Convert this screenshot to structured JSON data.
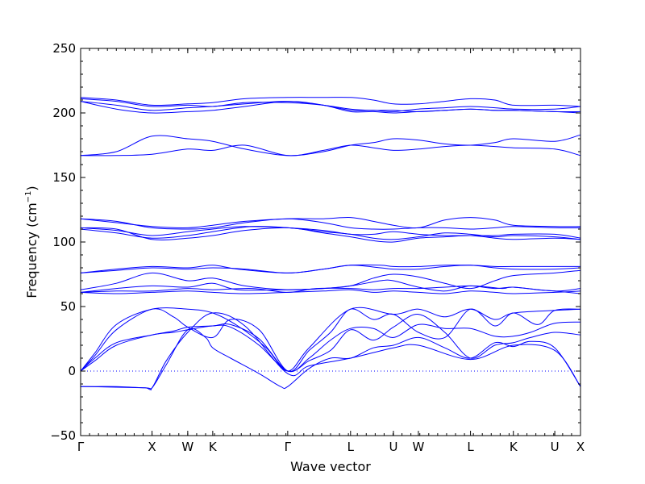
{
  "chart_data": {
    "type": "line",
    "title": "",
    "xlabel": "Wave vector",
    "ylabel": "Frequency (cm",
    "ylabel_sup": "−1",
    "ylabel_close": ")",
    "ylim": [
      -50,
      250
    ],
    "yticks": [
      "250",
      "200",
      "150",
      "100",
      "50",
      "0",
      "−50"
    ],
    "ytick_values": [
      250,
      200,
      150,
      100,
      50,
      0,
      -50
    ],
    "xlim": [
      0,
      7.0
    ],
    "xticks": [
      {
        "label": "Γ",
        "x": 0.0
      },
      {
        "label": "X",
        "x": 1.0
      },
      {
        "label": "W",
        "x": 1.5
      },
      {
        "label": "K",
        "x": 1.85
      },
      {
        "label": "Γ",
        "x": 2.9
      },
      {
        "label": "L",
        "x": 3.78
      },
      {
        "label": "U",
        "x": 4.38
      },
      {
        "label": "W",
        "x": 4.73
      },
      {
        "label": "L",
        "x": 5.46
      },
      {
        "label": "K",
        "x": 6.06
      },
      {
        "label": "U",
        "x": 6.64
      },
      {
        "label": "X",
        "x": 7.0
      }
    ],
    "series_color": "#0000ff",
    "zero_line_color": "#0000ff",
    "series": [
      {
        "x": [
          0.0,
          0.2,
          0.5,
          1.0,
          1.5,
          1.85,
          2.2,
          2.6,
          2.9,
          3.2,
          3.78,
          4.38,
          4.73,
          5.1,
          5.46,
          5.8,
          6.06,
          6.64,
          7.0
        ],
        "y": [
          0,
          14,
          36,
          48,
          48,
          45,
          35,
          18,
          0,
          18,
          48,
          44,
          48,
          42,
          48,
          40,
          45,
          47,
          48
        ]
      },
      {
        "x": [
          0.0,
          0.2,
          0.5,
          1.0,
          1.3,
          1.5,
          1.85,
          2.1,
          2.5,
          2.9,
          3.2,
          3.5,
          3.78,
          4.1,
          4.38,
          4.73,
          5.1,
          5.46,
          5.8,
          6.06,
          6.4,
          6.64,
          7.0
        ],
        "y": [
          0,
          12,
          32,
          48,
          42,
          34,
          26,
          40,
          32,
          0,
          16,
          30,
          48,
          40,
          44,
          30,
          26,
          48,
          35,
          45,
          36,
          47,
          48
        ]
      },
      {
        "x": [
          0.0,
          0.2,
          0.5,
          1.0,
          1.3,
          1.5,
          1.85,
          2.1,
          2.5,
          2.9,
          3.2,
          3.5,
          3.78,
          4.1,
          4.38,
          4.73,
          5.1,
          5.46,
          5.8,
          6.06,
          6.3,
          6.64,
          7.0
        ],
        "y": [
          0,
          10,
          22,
          28,
          31,
          34,
          35,
          36,
          25,
          0,
          10,
          24,
          33,
          33,
          26,
          36,
          33,
          33,
          27,
          27,
          30,
          37,
          38
        ]
      },
      {
        "x": [
          0.0,
          0.2,
          0.5,
          1.0,
          1.3,
          1.5,
          1.85,
          2.1,
          2.5,
          2.9,
          3.2,
          3.5,
          3.78,
          4.1,
          4.38,
          4.73,
          5.1,
          5.46,
          5.8,
          6.06,
          6.3,
          6.64,
          7.0
        ],
        "y": [
          0,
          8,
          20,
          28,
          30,
          32,
          35,
          34,
          20,
          0,
          8,
          16,
          32,
          24,
          34,
          44,
          30,
          10,
          20,
          22,
          26,
          30,
          28
        ]
      },
      {
        "x": [
          0.0,
          0.2,
          0.5,
          0.9,
          1.0,
          1.2,
          1.5,
          1.75,
          1.85,
          2.1,
          2.5,
          2.8,
          2.9,
          3.2,
          3.5,
          3.78,
          4.1,
          4.38,
          4.73,
          5.1,
          5.46,
          5.8,
          6.06,
          6.3,
          6.64,
          7.0
        ],
        "y": [
          -12,
          -12,
          -12,
          -13,
          -13,
          5,
          32,
          26,
          18,
          10,
          -2,
          -12,
          -12,
          2,
          10,
          10,
          18,
          20,
          26,
          18,
          10,
          22,
          19,
          23,
          18,
          -12
        ]
      },
      {
        "x": [
          0.0,
          0.1,
          0.9,
          1.0,
          1.2,
          1.5,
          1.85,
          2.3,
          2.9,
          3.2,
          3.78,
          4.38,
          4.73,
          5.46,
          6.06,
          6.64,
          7.0
        ],
        "y": [
          -12,
          -12,
          -13,
          -13,
          8,
          30,
          45,
          35,
          -2,
          4,
          10,
          18,
          20,
          9,
          20,
          16,
          -12
        ]
      },
      {
        "x": [
          0.0,
          0.5,
          1.0,
          1.5,
          1.85,
          2.4,
          2.9,
          3.3,
          3.78,
          4.1,
          4.38,
          4.73,
          5.1,
          5.46,
          5.8,
          6.06,
          6.4,
          6.64,
          7.0
        ],
        "y": [
          61,
          62,
          62,
          64,
          63,
          64,
          61,
          64,
          64,
          63,
          64,
          64,
          65,
          66,
          64,
          65,
          63,
          62,
          60
        ]
      },
      {
        "x": [
          0.0,
          0.5,
          1.0,
          1.5,
          1.85,
          2.2,
          2.9,
          3.4,
          3.78,
          4.2,
          4.38,
          4.73,
          5.1,
          5.46,
          5.9,
          6.06,
          6.64,
          7.0
        ],
        "y": [
          61,
          64,
          66,
          65,
          68,
          63,
          63,
          64,
          66,
          70,
          70,
          65,
          62,
          66,
          64,
          65,
          62,
          64
        ]
      },
      {
        "x": [
          0.0,
          0.5,
          1.0,
          1.5,
          1.85,
          2.3,
          2.9,
          3.4,
          3.78,
          4.1,
          4.38,
          4.73,
          5.1,
          5.46,
          5.8,
          6.06,
          6.64,
          7.0
        ],
        "y": [
          63,
          68,
          76,
          70,
          72,
          66,
          63,
          64,
          66,
          72,
          75,
          73,
          68,
          64,
          70,
          74,
          76,
          78
        ]
      },
      {
        "x": [
          0.0,
          0.5,
          1.0,
          1.5,
          1.85,
          2.3,
          2.9,
          3.4,
          3.78,
          4.2,
          4.38,
          4.73,
          5.1,
          5.46,
          5.8,
          6.06,
          6.64,
          7.0
        ],
        "y": [
          76,
          78,
          80,
          79,
          80,
          79,
          76,
          79,
          82,
          80,
          79,
          79,
          81,
          82,
          80,
          79,
          79,
          80
        ]
      },
      {
        "x": [
          0.0,
          0.5,
          1.0,
          1.5,
          1.85,
          2.2,
          2.9,
          3.4,
          3.78,
          4.2,
          4.38,
          4.73,
          5.1,
          5.46,
          5.8,
          6.06,
          6.64,
          7.0
        ],
        "y": [
          76,
          79,
          81,
          80,
          82,
          79,
          76,
          79,
          82,
          82,
          81,
          81,
          82,
          82,
          81,
          81,
          81,
          81
        ]
      },
      {
        "x": [
          0.0,
          0.5,
          1.0,
          1.5,
          1.85,
          2.3,
          2.9,
          3.4,
          3.78,
          4.1,
          4.38,
          4.73,
          5.1,
          5.46,
          5.8,
          6.06,
          6.64,
          7.0
        ],
        "y": [
          61,
          60,
          61,
          62,
          61,
          60,
          61,
          62,
          63,
          61,
          62,
          61,
          60,
          62,
          61,
          60,
          61,
          62
        ]
      },
      {
        "x": [
          0.0,
          0.5,
          1.0,
          1.5,
          1.85,
          2.4,
          2.9,
          3.4,
          3.78,
          4.1,
          4.38,
          4.73,
          5.1,
          5.46,
          5.8,
          6.06,
          6.64,
          7.0
        ],
        "y": [
          110,
          107,
          103,
          105,
          108,
          112,
          111,
          108,
          106,
          103,
          102,
          104,
          107,
          106,
          104,
          105,
          104,
          102
        ]
      },
      {
        "x": [
          0.0,
          0.5,
          1.0,
          1.5,
          1.85,
          2.3,
          2.9,
          3.4,
          3.78,
          4.1,
          4.38,
          4.73,
          5.1,
          5.46,
          5.8,
          6.06,
          6.64,
          7.0
        ],
        "y": [
          111,
          109,
          105,
          108,
          110,
          112,
          111,
          109,
          106,
          106,
          108,
          106,
          105,
          105,
          105,
          106,
          106,
          103
        ]
      },
      {
        "x": [
          0.0,
          0.5,
          1.0,
          1.5,
          1.85,
          2.3,
          2.9,
          3.4,
          3.78,
          4.1,
          4.38,
          4.73,
          5.1,
          5.46,
          5.8,
          6.06,
          6.64,
          7.0
        ],
        "y": [
          118,
          115,
          112,
          111,
          113,
          116,
          118,
          118,
          119,
          116,
          113,
          111,
          117,
          119,
          117,
          113,
          112,
          112
        ]
      },
      {
        "x": [
          0.0,
          0.5,
          1.0,
          1.5,
          1.85,
          2.3,
          2.9,
          3.4,
          3.78,
          4.1,
          4.38,
          4.73,
          5.1,
          5.46,
          5.8,
          6.06,
          6.64,
          7.0
        ],
        "y": [
          118,
          116,
          111,
          110,
          111,
          115,
          118,
          115,
          111,
          110,
          110,
          111,
          111,
          110,
          111,
          112,
          111,
          111
        ]
      },
      {
        "x": [
          0.0,
          0.5,
          1.0,
          1.5,
          1.85,
          2.3,
          2.9,
          3.4,
          3.78,
          4.1,
          4.38,
          4.73,
          5.1,
          5.46,
          5.8,
          6.06,
          6.64,
          7.0
        ],
        "y": [
          111,
          110,
          102,
          103,
          105,
          109,
          111,
          107,
          104,
          101,
          100,
          103,
          104,
          105,
          103,
          102,
          103,
          102
        ]
      },
      {
        "x": [
          0.0,
          0.5,
          1.0,
          1.5,
          1.85,
          2.3,
          2.9,
          3.4,
          3.78,
          4.1,
          4.38,
          4.73,
          5.1,
          5.46,
          5.8,
          6.06,
          6.64,
          7.0
        ],
        "y": [
          167,
          170,
          182,
          180,
          178,
          172,
          167,
          170,
          175,
          177,
          180,
          179,
          176,
          175,
          177,
          180,
          178,
          183
        ]
      },
      {
        "x": [
          0.0,
          0.5,
          1.0,
          1.5,
          1.85,
          2.3,
          2.9,
          3.4,
          3.78,
          4.1,
          4.38,
          4.73,
          5.1,
          5.46,
          5.8,
          6.06,
          6.64,
          7.0
        ],
        "y": [
          167,
          167,
          168,
          172,
          171,
          175,
          167,
          171,
          175,
          173,
          171,
          172,
          174,
          175,
          174,
          173,
          172,
          167
        ]
      },
      {
        "x": [
          0.0,
          0.5,
          1.0,
          1.5,
          1.85,
          2.3,
          2.9,
          3.4,
          3.78,
          4.1,
          4.38,
          4.73,
          5.1,
          5.46,
          5.8,
          6.06,
          6.64,
          7.0
        ],
        "y": [
          209,
          206,
          202,
          204,
          205,
          207,
          209,
          206,
          203,
          202,
          202,
          201,
          202,
          203,
          202,
          202,
          201,
          201
        ]
      },
      {
        "x": [
          0.0,
          0.5,
          1.0,
          1.5,
          1.85,
          2.3,
          2.9,
          3.4,
          3.78,
          4.1,
          4.38,
          4.73,
          5.1,
          5.46,
          5.8,
          6.06,
          6.64,
          7.0
        ],
        "y": [
          209,
          203,
          200,
          201,
          202,
          205,
          209,
          206,
          201,
          201,
          200,
          201,
          202,
          203,
          202,
          202,
          201,
          200
        ]
      },
      {
        "x": [
          0.0,
          0.5,
          1.0,
          1.5,
          1.85,
          2.3,
          2.9,
          3.4,
          3.78,
          4.1,
          4.38,
          4.73,
          5.1,
          5.46,
          5.8,
          6.06,
          6.64,
          7.0
        ],
        "y": [
          211,
          209,
          205,
          206,
          205,
          208,
          208,
          206,
          202,
          202,
          201,
          203,
          204,
          205,
          204,
          203,
          203,
          205
        ]
      },
      {
        "x": [
          0.0,
          0.5,
          1.0,
          1.5,
          1.85,
          2.3,
          2.9,
          3.4,
          3.78,
          4.1,
          4.38,
          4.73,
          5.1,
          5.46,
          5.8,
          6.06,
          6.64,
          7.0
        ],
        "y": [
          212,
          210,
          206,
          207,
          208,
          211,
          212,
          212,
          212,
          210,
          207,
          207,
          209,
          211,
          210,
          206,
          206,
          205
        ]
      }
    ]
  }
}
